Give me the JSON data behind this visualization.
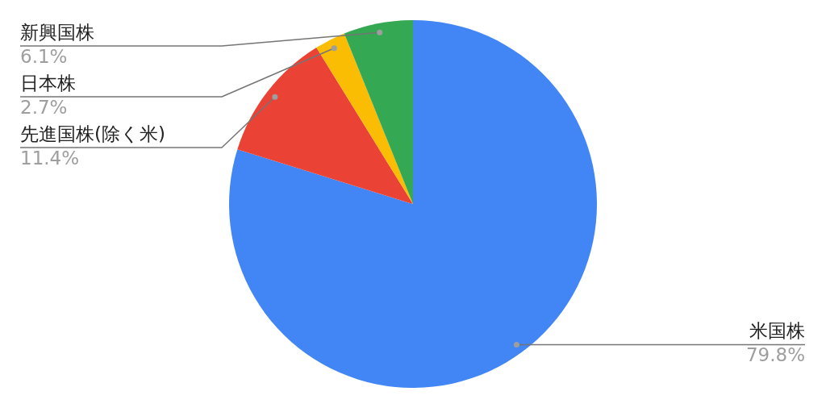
{
  "chart_data": {
    "type": "pie",
    "categories": [
      "米国株",
      "先進国株(除く米)",
      "日本株",
      "新興国株"
    ],
    "values": [
      79.8,
      11.4,
      2.7,
      6.1
    ],
    "colors": [
      "#4285f4",
      "#ea4335",
      "#fbbc04",
      "#34a853"
    ],
    "value_labels": [
      "79.8%",
      "11.4%",
      "2.7%",
      "6.1%"
    ]
  }
}
